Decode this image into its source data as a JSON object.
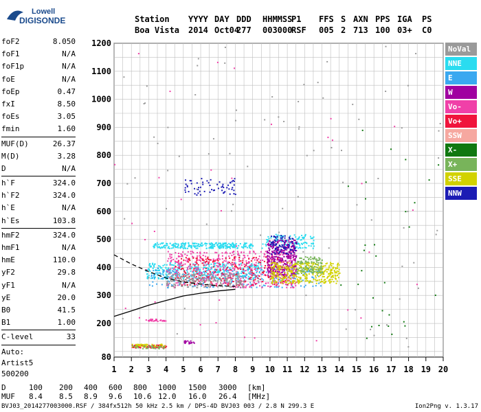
{
  "logo": {
    "line1": "Lowell",
    "line2": "DIGISONDE"
  },
  "header": {
    "labels": [
      "Station",
      "YYYY",
      "DAY",
      "DDD",
      "HHMMSS",
      "P1",
      "FFS",
      "S",
      "AXN",
      "PPS",
      "IGA",
      "PS"
    ],
    "values": [
      "Boa Vista",
      "2014",
      "Oct04",
      "277",
      "003000",
      "RSF",
      "005",
      "2",
      "713",
      "100",
      "03+",
      "C0"
    ]
  },
  "params": {
    "groups": [
      [
        [
          "foF2",
          "8.050"
        ],
        [
          "foF1",
          "N/A"
        ],
        [
          "foF1p",
          "N/A"
        ],
        [
          "foE",
          "N/A"
        ],
        [
          "foEp",
          "0.47"
        ],
        [
          "fxI",
          "8.50"
        ],
        [
          "foEs",
          "3.05"
        ],
        [
          "fmin",
          "1.60"
        ]
      ],
      [
        [
          "MUF(D)",
          "26.37"
        ],
        [
          "M(D)",
          "3.28"
        ],
        [
          "D",
          "N/A"
        ]
      ],
      [
        [
          "h`F",
          "324.0"
        ],
        [
          "h`F2",
          "324.0"
        ],
        [
          "h`E",
          "N/A"
        ],
        [
          "h`Es",
          "103.8"
        ]
      ],
      [
        [
          "hmF2",
          "324.0"
        ],
        [
          "hmF1",
          "N/A"
        ],
        [
          "hmE",
          "110.0"
        ],
        [
          "yF2",
          "29.8"
        ],
        [
          "yF1",
          "N/A"
        ],
        [
          "yE",
          "20.0"
        ],
        [
          "B0",
          "41.5"
        ],
        [
          "B1",
          "1.00"
        ]
      ],
      [
        [
          "C-level",
          "33"
        ]
      ]
    ],
    "auto": [
      "Auto:",
      "Artist5",
      "500200"
    ]
  },
  "legend": [
    {
      "label": "NoVal",
      "color": "#9a9a9a"
    },
    {
      "label": "NNE",
      "color": "#2adcf0"
    },
    {
      "label": "E",
      "color": "#3aa8f0"
    },
    {
      "label": "W",
      "color": "#a000a0"
    },
    {
      "label": "Vo-",
      "color": "#f040a8"
    },
    {
      "label": "Vo+",
      "color": "#f0143c"
    },
    {
      "label": "SSW",
      "color": "#f6a8a0"
    },
    {
      "label": "X-",
      "color": "#107810"
    },
    {
      "label": "X+",
      "color": "#78b45a"
    },
    {
      "label": "SSE",
      "color": "#d2d200"
    },
    {
      "label": "NNW",
      "color": "#1c1cb4"
    }
  ],
  "bottom": {
    "d_label": "D",
    "d_values": [
      "100",
      "200",
      "400",
      "600",
      "800",
      "1000",
      "1500",
      "3000",
      "[km]"
    ],
    "muf_label": "MUF",
    "muf_values": [
      "8.4",
      "8.5",
      "8.9",
      "9.6",
      "10.6",
      "12.0",
      "16.0",
      "26.4",
      "[MHz]"
    ]
  },
  "footer": {
    "left": "BVJ03_2014277003000.RSF / 384fx512h 50 kHz 2.5 km / DPS-4D BVJ03 003 / 2.8 N 299.3 E",
    "right": "Ion2Png v. 1.3.17"
  },
  "chart_data": {
    "type": "scatter",
    "xlim": [
      1,
      20
    ],
    "ylim": [
      80,
      1200
    ],
    "xticks": [
      1,
      2,
      3,
      4,
      5,
      6,
      7,
      8,
      9,
      10,
      11,
      12,
      13,
      14,
      15,
      16,
      17,
      18,
      19,
      20
    ],
    "yticks": [
      200,
      300,
      400,
      500,
      600,
      700,
      800,
      900,
      1000,
      1100,
      1200
    ],
    "yticks_extra": [
      80
    ],
    "grid": true,
    "legend_position": "right",
    "clusters": [
      {
        "series": "NNE",
        "x": [
          3.2,
          9.0
        ],
        "y": [
          470,
          490
        ],
        "n": 260
      },
      {
        "series": "NNE",
        "x": [
          2.8,
          9.5
        ],
        "y": [
          360,
          420
        ],
        "n": 380
      },
      {
        "series": "NNE",
        "x": [
          9.5,
          12.5
        ],
        "y": [
          470,
          520
        ],
        "n": 120
      },
      {
        "series": "E",
        "x": [
          3.0,
          13.0
        ],
        "y": [
          330,
          400
        ],
        "n": 260
      },
      {
        "series": "Vo-",
        "x": [
          4.0,
          11.5
        ],
        "y": [
          330,
          460
        ],
        "n": 500
      },
      {
        "series": "Vo+",
        "x": [
          4.5,
          11.0
        ],
        "y": [
          335,
          440
        ],
        "n": 260
      },
      {
        "series": "W",
        "x": [
          9.8,
          11.5
        ],
        "y": [
          370,
          500
        ],
        "n": 350
      },
      {
        "series": "NNW",
        "x": [
          10.0,
          11.5
        ],
        "y": [
          450,
          520
        ],
        "n": 80
      },
      {
        "series": "SSE",
        "x": [
          10.0,
          14.0
        ],
        "y": [
          345,
          420
        ],
        "n": 380
      },
      {
        "series": "X+",
        "x": [
          11.5,
          13.0
        ],
        "y": [
          380,
          440
        ],
        "n": 120
      },
      {
        "series": "NoVal",
        "x": [
          4.0,
          8.5
        ],
        "y": [
          330,
          380
        ],
        "n": 200
      },
      {
        "series": "NNW",
        "x": [
          5.0,
          8.0
        ],
        "y": [
          660,
          720
        ],
        "n": 60
      },
      {
        "series": "Vo+",
        "x": [
          2.0,
          4.0
        ],
        "y": [
          115,
          125
        ],
        "n": 70
      },
      {
        "series": "SSE",
        "x": [
          2.0,
          4.0
        ],
        "y": [
          118,
          128
        ],
        "n": 40
      },
      {
        "series": "X+",
        "x": [
          2.0,
          4.0
        ],
        "y": [
          112,
          122
        ],
        "n": 30
      },
      {
        "series": "W",
        "x": [
          5.0,
          5.6
        ],
        "y": [
          130,
          140
        ],
        "n": 20
      },
      {
        "series": "Vo-",
        "x": [
          2.8,
          4.0
        ],
        "y": [
          210,
          218
        ],
        "n": 25
      },
      {
        "series": "NoVal",
        "x": [
          1.0,
          20.0
        ],
        "y": [
          100,
          1200
        ],
        "n": 90
      },
      {
        "series": "Vo-",
        "x": [
          1.0,
          20.0
        ],
        "y": [
          120,
          1200
        ],
        "n": 40
      },
      {
        "series": "X-",
        "x": [
          14.0,
          20.0
        ],
        "y": [
          120,
          900
        ],
        "n": 30
      }
    ],
    "curves": [
      {
        "name": "o-trace",
        "style": "dashed",
        "x": [
          1.0,
          2.0,
          3.0,
          4.0,
          5.0,
          6.0,
          7.0,
          8.0
        ],
        "y": [
          445,
          412,
          385,
          362,
          348,
          340,
          335,
          332
        ]
      },
      {
        "name": "x-trace",
        "style": "solid",
        "x": [
          1.0,
          2.0,
          3.0,
          4.0,
          5.0,
          6.0,
          7.0,
          8.0
        ],
        "y": [
          225,
          245,
          265,
          282,
          298,
          308,
          316,
          322
        ]
      }
    ]
  }
}
